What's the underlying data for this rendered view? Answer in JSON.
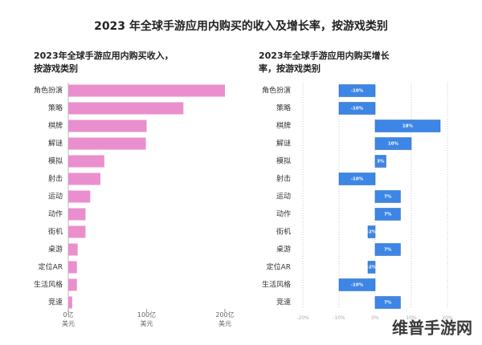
{
  "title": "2023 年全球手游应用内购买的收入及增长率，按游戏类别",
  "watermark": "维普手游网",
  "chart_data": [
    {
      "type": "hbar",
      "title": "2023年全球手游应用内购买收入，按游戏类别",
      "categories": [
        "角色扮演",
        "策略",
        "棋牌",
        "解谜",
        "模拟",
        "射击",
        "运动",
        "动作",
        "街机",
        "桌游",
        "定位AR",
        "生活风格",
        "竞速"
      ],
      "values": [
        200,
        147,
        100,
        99,
        46,
        41,
        28,
        22,
        22,
        12,
        11,
        11,
        5
      ],
      "color": "#ea8fcd",
      "xlim": [
        0,
        200
      ],
      "xticks": [
        {
          "value": 0,
          "label": "0亿\n美元"
        },
        {
          "value": 100,
          "label": "100亿\n美元"
        },
        {
          "value": 200,
          "label": "200亿\n美元"
        }
      ],
      "grid": false
    },
    {
      "type": "hbar",
      "title": "2023年全球手游应用内购买增长率，按游戏类别",
      "categories": [
        "角色扮演",
        "策略",
        "棋牌",
        "解谜",
        "模拟",
        "射击",
        "运动",
        "动作",
        "街机",
        "桌游",
        "定位AR",
        "生活风格",
        "竞速"
      ],
      "values": [
        -10,
        -10,
        18,
        10,
        3,
        -10,
        7,
        7,
        -2,
        7,
        -2,
        -10,
        7
      ],
      "value_labels": [
        "-10%",
        "-10%",
        "18%",
        "10%",
        "3%",
        "-10%",
        "7%",
        "7%",
        "-2%",
        "7%",
        "-2%",
        "-10%",
        "7%"
      ],
      "color": "#3d86e6",
      "xlim": [
        -20,
        20
      ],
      "xticks": [
        {
          "value": -20,
          "label": "-20%"
        },
        {
          "value": -10,
          "label": "-10%"
        },
        {
          "value": 0,
          "label": "0%"
        },
        {
          "value": 10,
          "label": "10%"
        },
        {
          "value": 20,
          "label": "20%"
        }
      ],
      "grid": true
    }
  ]
}
